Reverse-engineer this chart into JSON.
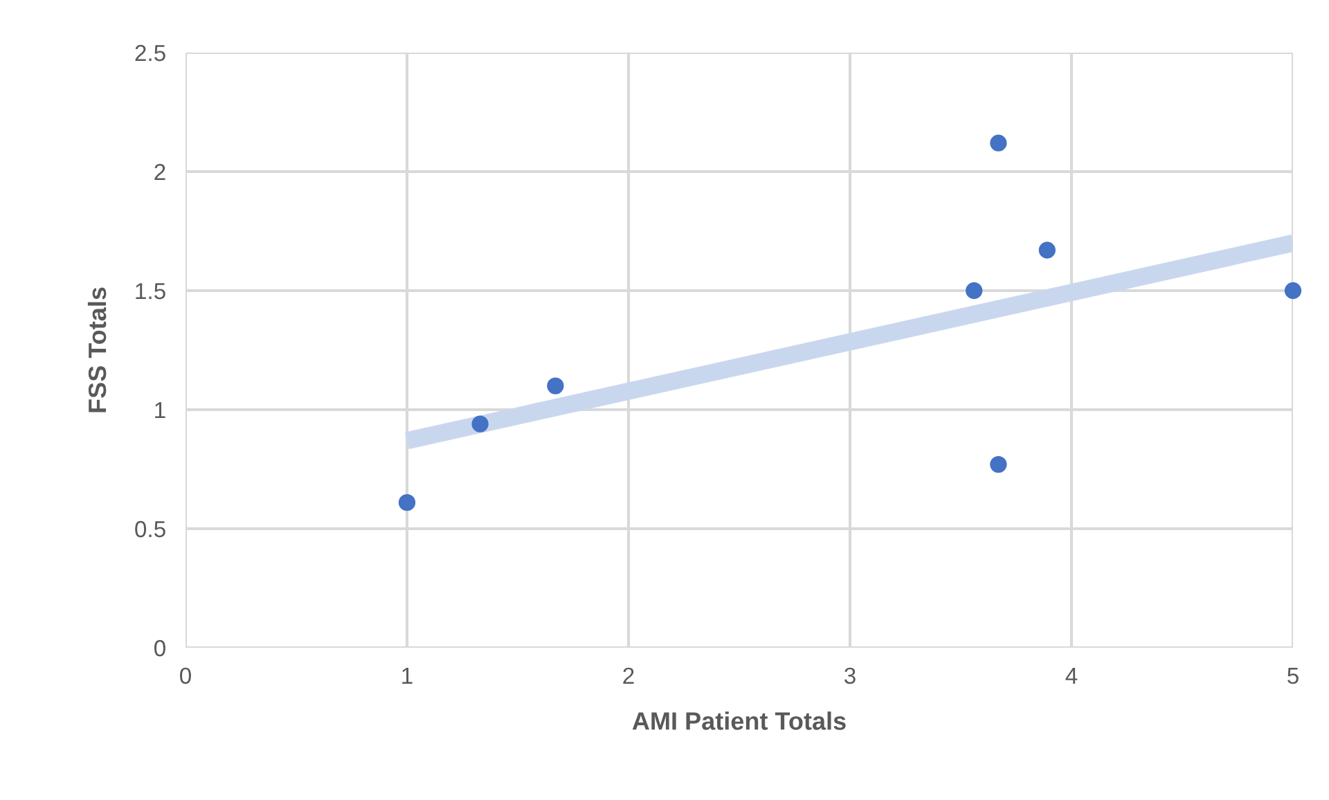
{
  "chart_data": {
    "type": "scatter",
    "xlabel": "AMI Patient Totals",
    "ylabel": "FSS Totals",
    "series": [
      {
        "type": "line",
        "color": "#c9d7ee",
        "x": [
          1,
          5
        ],
        "values": [
          0.87,
          1.7
        ],
        "marker": "none"
      },
      {
        "color": "#4472c4",
        "x": [
          1,
          1.33,
          1.67,
          3.56,
          3.67,
          3.67,
          3.89,
          5
        ],
        "values": [
          0.61,
          0.94,
          1.1,
          1.5,
          2.12,
          0.77,
          1.67,
          1.5
        ],
        "marker": "circle"
      }
    ],
    "xlim": [
      0,
      5
    ],
    "xticks": [
      0,
      1,
      2,
      3,
      4,
      5
    ],
    "ylim": [
      0,
      2.5
    ],
    "yticks": [
      0,
      {
        "value": 0.5,
        "label": "0.5"
      },
      1,
      {
        "value": 1.5,
        "label": "1.5"
      },
      2,
      {
        "value": 2.5,
        "label": "2.5"
      }
    ],
    "grid": true,
    "legend": false
  }
}
